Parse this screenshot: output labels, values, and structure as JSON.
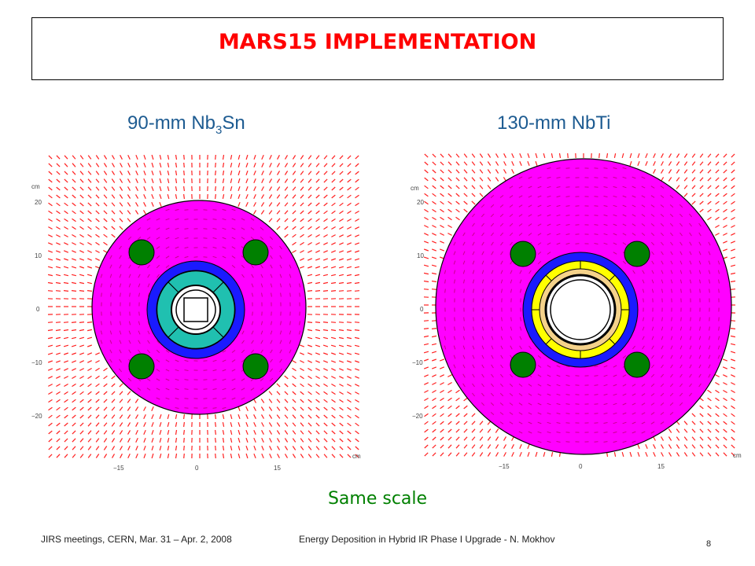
{
  "slide": {
    "title": "MARS15 IMPLEMENTATION",
    "left_panel": {
      "label_prefix": "90-mm Nb",
      "label_sub": "3",
      "label_suffix": "Sn",
      "y_ticks": [
        "20",
        "10",
        "0",
        "−10",
        "−20"
      ],
      "x_ticks": [
        "−15",
        "0",
        "15"
      ],
      "unit": "cm"
    },
    "right_panel": {
      "label": "130-mm NbTi",
      "y_ticks": [
        "20",
        "10",
        "0",
        "−10",
        "−20"
      ],
      "x_ticks": [
        "−15",
        "0",
        "15"
      ],
      "unit": "cm"
    },
    "note": "Same scale",
    "footer_left": "JIRS meetings, CERN, Mar. 31 – Apr. 2, 2008",
    "footer_center": "Energy Deposition in Hybrid IR Phase I Upgrade -  N. Mokhov",
    "page_number": "8"
  },
  "colors": {
    "title": "#ff0000",
    "subtitle": "#1d5b91",
    "note": "#008000",
    "yoke": "#ff00ff",
    "holes": "#008000",
    "collar": "#1a1aff",
    "coil_nb3sn": "#20c0b0",
    "coil_nbti": "#ffff00",
    "spacer": "#f5d28a",
    "field_arrows": "#ff2020"
  }
}
